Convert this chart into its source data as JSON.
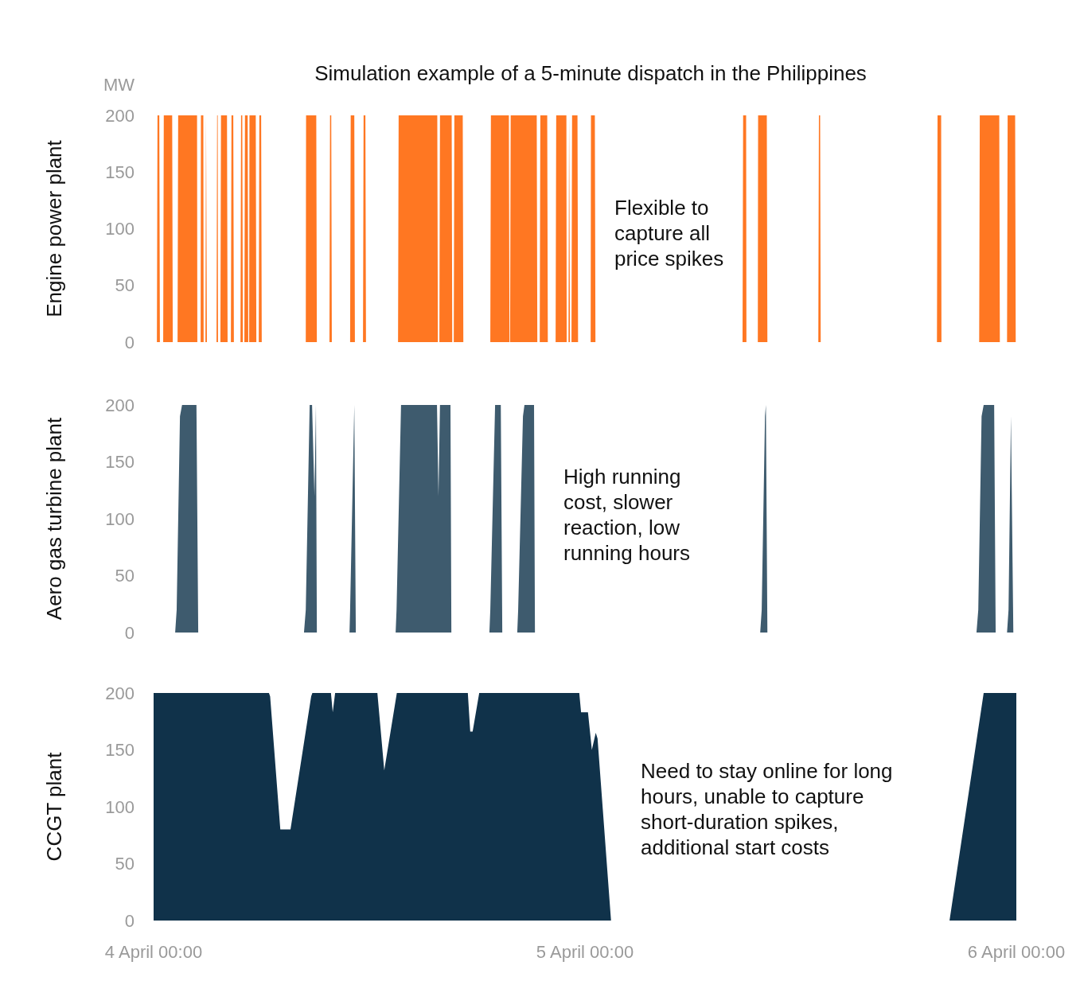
{
  "chart_data": [
    {
      "type": "area",
      "title": "Simulation example of a 5-minute dispatch in the Philippines",
      "ylabel": "Engine power plant",
      "annotations": [
        "MW",
        "Flexible to capture all price spikes"
      ],
      "color": "#ff7722",
      "xlim": [
        "--04-04T00:00",
        "--04-06T00:00"
      ],
      "ylim": [
        0,
        200
      ],
      "yticks": [
        0,
        50,
        100,
        150,
        200
      ],
      "tick_labels": "y",
      "x": [
        "--04-04T00:00",
        "--04-04T00:11",
        "--04-04T00:13",
        "--04-04T00:19",
        "--04-04T00:21",
        "--04-04T00:32",
        "--04-04T00:34",
        "--04-04T01:02",
        "--04-04T01:04",
        "--04-04T01:20",
        "--04-04T01:22",
        "--04-04T02:25",
        "--04-04T02:26",
        "--04-04T02:37",
        "--04-04T02:38",
        "--04-04T02:46",
        "--04-04T02:47",
        "--04-04T02:53",
        "--04-04T02:55",
        "--04-04T02:56",
        "--04-04T02:58",
        "--04-04T03:30",
        "--04-04T03:32",
        "--04-04T03:34",
        "--04-04T03:35",
        "--04-04T03:43",
        "--04-04T03:45",
        "--04-04T04:05",
        "--04-04T04:07",
        "--04-04T04:18",
        "--04-04T04:20",
        "--04-04T04:26",
        "--04-04T04:28",
        "--04-04T04:50",
        "--04-04T04:52",
        "--04-04T04:56",
        "--04-04T04:58",
        "--04-04T05:03",
        "--04-04T05:05",
        "--04-04T05:14",
        "--04-04T05:16",
        "--04-04T05:19",
        "--04-04T05:20",
        "--04-04T05:41",
        "--04-04T05:43",
        "--04-04T05:51",
        "--04-04T05:53",
        "--04-04T05:59",
        "--04-04T06:01",
        "--04-04T08:28",
        "--04-04T08:29",
        "--04-04T09:03",
        "--04-04T09:05",
        "--04-04T09:47",
        "--04-04T09:49",
        "--04-04T09:53",
        "--04-04T09:55",
        "--04-04T10:56",
        "--04-04T10:58",
        "--04-04T11:10",
        "--04-04T11:12",
        "--04-04T11:39",
        "--04-04T11:41",
        "--04-04T11:47",
        "--04-04T11:49",
        "--04-04T13:36",
        "--04-04T13:38",
        "--04-04T15:47",
        "--04-04T15:49",
        "--04-04T15:54",
        "--04-04T15:56",
        "--04-04T16:35",
        "--04-04T16:37",
        "--04-04T16:42",
        "--04-04T16:44",
        "--04-04T17:12",
        "--04-04T17:14",
        "--04-04T18:44",
        "--04-04T18:46",
        "--04-04T19:46",
        "--04-04T19:48",
        "--04-04T19:50",
        "--04-04T19:52",
        "--04-04T21:19",
        "--04-04T21:21",
        "--04-04T21:29",
        "--04-04T21:31",
        "--04-04T21:54",
        "--04-04T21:56",
        "--04-04T22:22",
        "--04-04T22:24",
        "--04-04T22:58",
        "--04-04T22:59",
        "--04-04T23:05",
        "--04-04T23:07",
        "--04-04T23:08",
        "--04-04T23:10",
        "--04-04T23:15",
        "--04-04T23:17",
        "--04-04T23:35",
        "--04-04T23:37",
        "--04-05T00:19",
        "--04-05T00:20",
        "--04-05T00:33",
        "--04-05T00:35",
        "--04-05T08:46",
        "--04-05T08:48",
        "--04-05T08:58",
        "--04-05T08:59",
        "--04-05T09:37",
        "--04-05T09:38",
        "--04-05T10:07",
        "--04-05T10:09",
        "--04-05T12:59",
        "--04-05T13:01",
        "--04-05T13:05",
        "--04-05T13:07",
        "--04-05T19:35",
        "--04-05T19:37",
        "--04-05T19:49",
        "--04-05T19:50",
        "--04-05T21:56",
        "--04-05T21:58",
        "--04-05T23:03",
        "--04-05T23:05",
        "--04-05T23:29",
        "--04-05T23:31",
        "--04-05T23:56",
        "--04-05T23:58",
        "--04-06T00:00"
      ],
      "values": [
        0,
        0,
        200,
        200,
        0,
        0,
        200,
        200,
        0,
        0,
        200,
        200,
        0,
        0,
        200,
        200,
        0,
        0,
        200,
        200,
        0,
        0,
        200,
        200,
        0,
        0,
        200,
        200,
        0,
        0,
        200,
        200,
        0,
        0,
        200,
        200,
        0,
        0,
        200,
        200,
        0,
        0,
        200,
        200,
        0,
        0,
        200,
        200,
        0,
        0,
        200,
        200,
        0,
        0,
        200,
        200,
        0,
        0,
        200,
        200,
        0,
        0,
        200,
        200,
        0,
        0,
        200,
        200,
        0,
        0,
        200,
        200,
        0,
        0,
        200,
        200,
        0,
        0,
        200,
        200,
        0,
        0,
        200,
        200,
        0,
        0,
        200,
        200,
        0,
        0,
        200,
        200,
        0,
        0,
        200,
        200,
        0,
        0,
        200,
        200,
        0,
        0,
        200,
        200,
        0,
        0,
        200,
        200,
        0,
        0,
        200,
        200,
        0,
        0,
        200,
        200,
        0,
        0,
        200,
        200,
        0,
        0,
        200,
        200,
        0,
        0,
        200,
        200,
        0,
        0
      ]
    },
    {
      "type": "area",
      "ylabel": "Aero gas turbine plant",
      "annotations": [
        "High running cost, slower reaction, low running hours"
      ],
      "color": "#3e5b6e",
      "xlim": [
        "--04-04T00:00",
        "--04-06T00:00"
      ],
      "ylim": [
        0,
        200
      ],
      "yticks": [
        0,
        50,
        100,
        150,
        200
      ],
      "tick_labels": "y",
      "x": [
        "--04-04T00:00",
        "--04-04T01:12",
        "--04-04T01:17",
        "--04-04T01:28",
        "--04-04T01:35",
        "--04-04T02:23",
        "--04-04T02:29",
        "--04-04T08:22",
        "--04-04T08:28",
        "--04-04T08:41",
        "--04-04T08:49",
        "--04-04T08:57",
        "--04-04T09:02",
        "--04-04T09:05",
        "--04-04T10:54",
        "--04-04T10:56",
        "--04-04T11:10",
        "--04-04T11:15",
        "--04-04T13:28",
        "--04-04T13:31",
        "--04-04T13:46",
        "--04-04T15:46",
        "--04-04T15:51",
        "--04-04T15:56",
        "--04-04T16:31",
        "--04-04T16:34",
        "--04-04T18:41",
        "--04-04T18:44",
        "--04-04T19:00",
        "--04-04T19:19",
        "--04-04T19:24",
        "--04-04T20:14",
        "--04-04T20:17",
        "--04-04T20:33",
        "--04-04T20:38",
        "--04-04T21:10",
        "--04-04T21:13",
        "--04-05T09:45",
        "--04-05T09:50",
        "--04-05T10:01",
        "--04-05T10:04",
        "--04-05T10:09",
        "--04-05T21:47",
        "--04-05T21:53",
        "--04-05T22:04",
        "--04-05T22:11",
        "--04-05T22:46",
        "--04-05T22:51",
        "--04-05T23:29",
        "--04-05T23:34",
        "--04-05T23:42",
        "--04-05T23:50",
        "--04-06T00:00"
      ],
      "values": [
        0,
        0,
        20,
        190,
        200,
        200,
        0,
        0,
        20,
        200,
        200,
        120,
        200,
        0,
        0,
        20,
        200,
        0,
        0,
        20,
        200,
        200,
        120,
        200,
        200,
        0,
        0,
        20,
        200,
        200,
        0,
        0,
        20,
        190,
        200,
        200,
        0,
        0,
        20,
        190,
        200,
        0,
        0,
        20,
        190,
        200,
        200,
        0,
        0,
        20,
        190,
        0,
        0
      ]
    },
    {
      "type": "area",
      "ylabel": "CCGT plant",
      "annotations": [
        "Need to stay online for long hours, unable to capture short-duration spikes, additional start costs"
      ],
      "color": "#10324a",
      "xlim": [
        "--04-04T00:00",
        "--04-06T00:00"
      ],
      "xticks": [
        {
          "value": "--04-04T00:00",
          "label": "4 April 00:00"
        },
        {
          "value": "--04-05T00:00",
          "label": "5 April 00:00"
        },
        {
          "value": "--04-06T00:00",
          "label": "6 April 00:00"
        }
      ],
      "ylim": [
        0,
        200
      ],
      "yticks": [
        0,
        50,
        100,
        150,
        200
      ],
      "x": [
        "--04-04T00:00",
        "--04-04T06:25",
        "--04-04T06:29",
        "--04-04T07:03",
        "--04-04T07:37",
        "--04-04T08:46",
        "--04-04T08:50",
        "--04-04T09:52",
        "--04-04T09:58",
        "--04-04T10:06",
        "--04-04T12:27",
        "--04-04T12:50",
        "--04-04T13:32",
        "--04-04T17:29",
        "--04-04T17:37",
        "--04-04T17:45",
        "--04-04T18:07",
        "--04-04T23:41",
        "--04-04T23:47",
        "--04-05T00:10",
        "--04-05T00:23",
        "--04-05T00:36",
        "--04-05T00:42",
        "--04-05T01:27",
        "--04-05T20:17",
        "--04-05T22:11",
        "--04-06T00:00"
      ],
      "values": [
        200,
        200,
        197,
        80,
        80,
        197,
        200,
        200,
        183,
        200,
        200,
        132,
        200,
        200,
        166,
        166,
        200,
        200,
        183,
        183,
        150,
        165,
        160,
        0,
        0,
        200,
        200
      ]
    }
  ]
}
